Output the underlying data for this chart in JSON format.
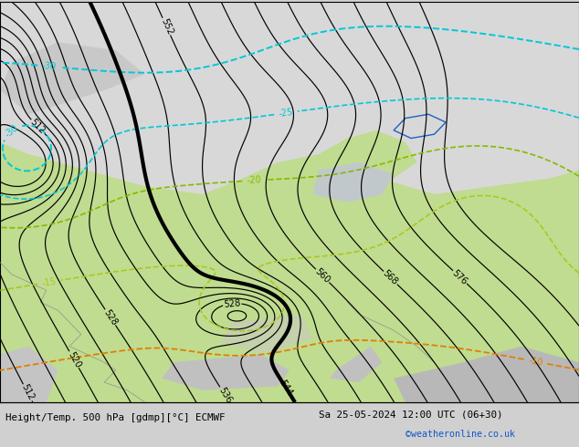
{
  "footer_left": "Height/Temp. 500 hPa [gdmp][°C] ECMWF",
  "footer_right": "Sa 25-05-2024 12:00 UTC (06+30)",
  "footer_url": "©weatheronline.co.uk",
  "figsize": [
    6.34,
    4.9
  ],
  "dpi": 100,
  "bg_gray": "#d0d0d0",
  "land_green": "#c0dc90",
  "land_gray": "#b8b8b8",
  "ocean_gray": "#c8c8c8",
  "arctic_gray": "#d8d8d8",
  "z500_color": "#000000",
  "temp_cyan": "#00c8d8",
  "temp_blue": "#2060c0",
  "temp_green": "#88b800",
  "temp_orange": "#e08000"
}
